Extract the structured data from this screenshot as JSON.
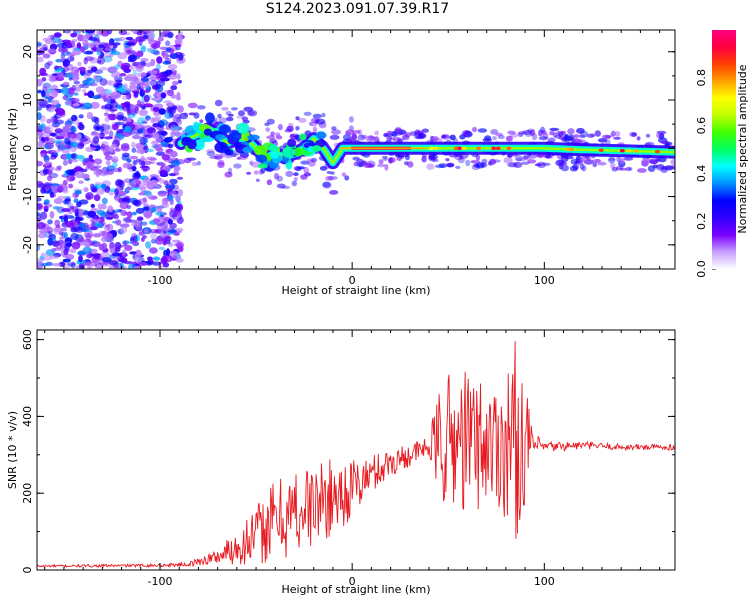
{
  "title": "S124.2023.091.07.39.R17",
  "chart_data": [
    {
      "type": "heatmap",
      "xlabel": "Height of straight line (km)",
      "ylabel": "Frequency (Hz)",
      "xlim": [
        -164,
        168
      ],
      "ylim": [
        -25,
        24.5
      ],
      "xticks": [
        -100,
        0,
        100
      ],
      "yticks": [
        -20,
        -10,
        0,
        10,
        20
      ],
      "colorbar": {
        "label": "Normalized spectral amplitude",
        "range": [
          0,
          1
        ],
        "ticks": [
          "0.0",
          "0.2",
          "0.4",
          "0.6",
          "0.8"
        ],
        "colors": [
          "#ffffff",
          "#c8a0ff",
          "#7a00ff",
          "#3000ff",
          "#0000ff",
          "#0090ff",
          "#00ffff",
          "#00ff60",
          "#40ff00",
          "#c0ff00",
          "#ffff00",
          "#ffa000",
          "#ff4000",
          "#ff0040",
          "#ff0080"
        ]
      },
      "ridge": {
        "x": [
          -89,
          -85,
          -80,
          -75,
          -70,
          -65,
          -60,
          -55,
          -50,
          -45,
          -40,
          -35,
          -30,
          -25,
          -20,
          -15,
          -10,
          -5,
          0,
          20,
          40,
          60,
          80,
          100,
          120,
          140,
          168
        ],
        "y": [
          1,
          2,
          3,
          4,
          3,
          1,
          2,
          2,
          0,
          -2,
          -1,
          -2,
          -1,
          0,
          2,
          0,
          -3,
          0,
          0,
          0,
          0,
          0,
          0,
          0,
          -0.3,
          -0.5,
          -0.8
        ]
      },
      "peak_span_km": [
        0,
        30
      ]
    },
    {
      "type": "line",
      "xlabel": "Height of straight line (km)",
      "ylabel": "SNR (10 * v/v)",
      "xlim": [
        -164,
        168
      ],
      "ylim": [
        0,
        625
      ],
      "xticks": [
        -100,
        0,
        100
      ],
      "yticks": [
        0,
        200,
        400,
        600
      ],
      "color": "#e8191f",
      "envelope": {
        "x": [
          -164,
          -100,
          -85,
          -70,
          -60,
          -50,
          -40,
          -30,
          -20,
          -10,
          0,
          10,
          20,
          30,
          40,
          45,
          50,
          60,
          70,
          75,
          80,
          85,
          90,
          95,
          100,
          120,
          140,
          168
        ],
        "mean": [
          10,
          12,
          15,
          35,
          60,
          90,
          130,
          150,
          170,
          190,
          210,
          250,
          280,
          300,
          320,
          330,
          330,
          340,
          330,
          330,
          330,
          330,
          330,
          325,
          320,
          325,
          320,
          320
        ],
        "amp": [
          3,
          4,
          6,
          20,
          50,
          80,
          110,
          120,
          110,
          100,
          80,
          50,
          40,
          30,
          30,
          140,
          190,
          190,
          170,
          160,
          200,
          280,
          150,
          30,
          15,
          10,
          8,
          8
        ]
      }
    }
  ]
}
